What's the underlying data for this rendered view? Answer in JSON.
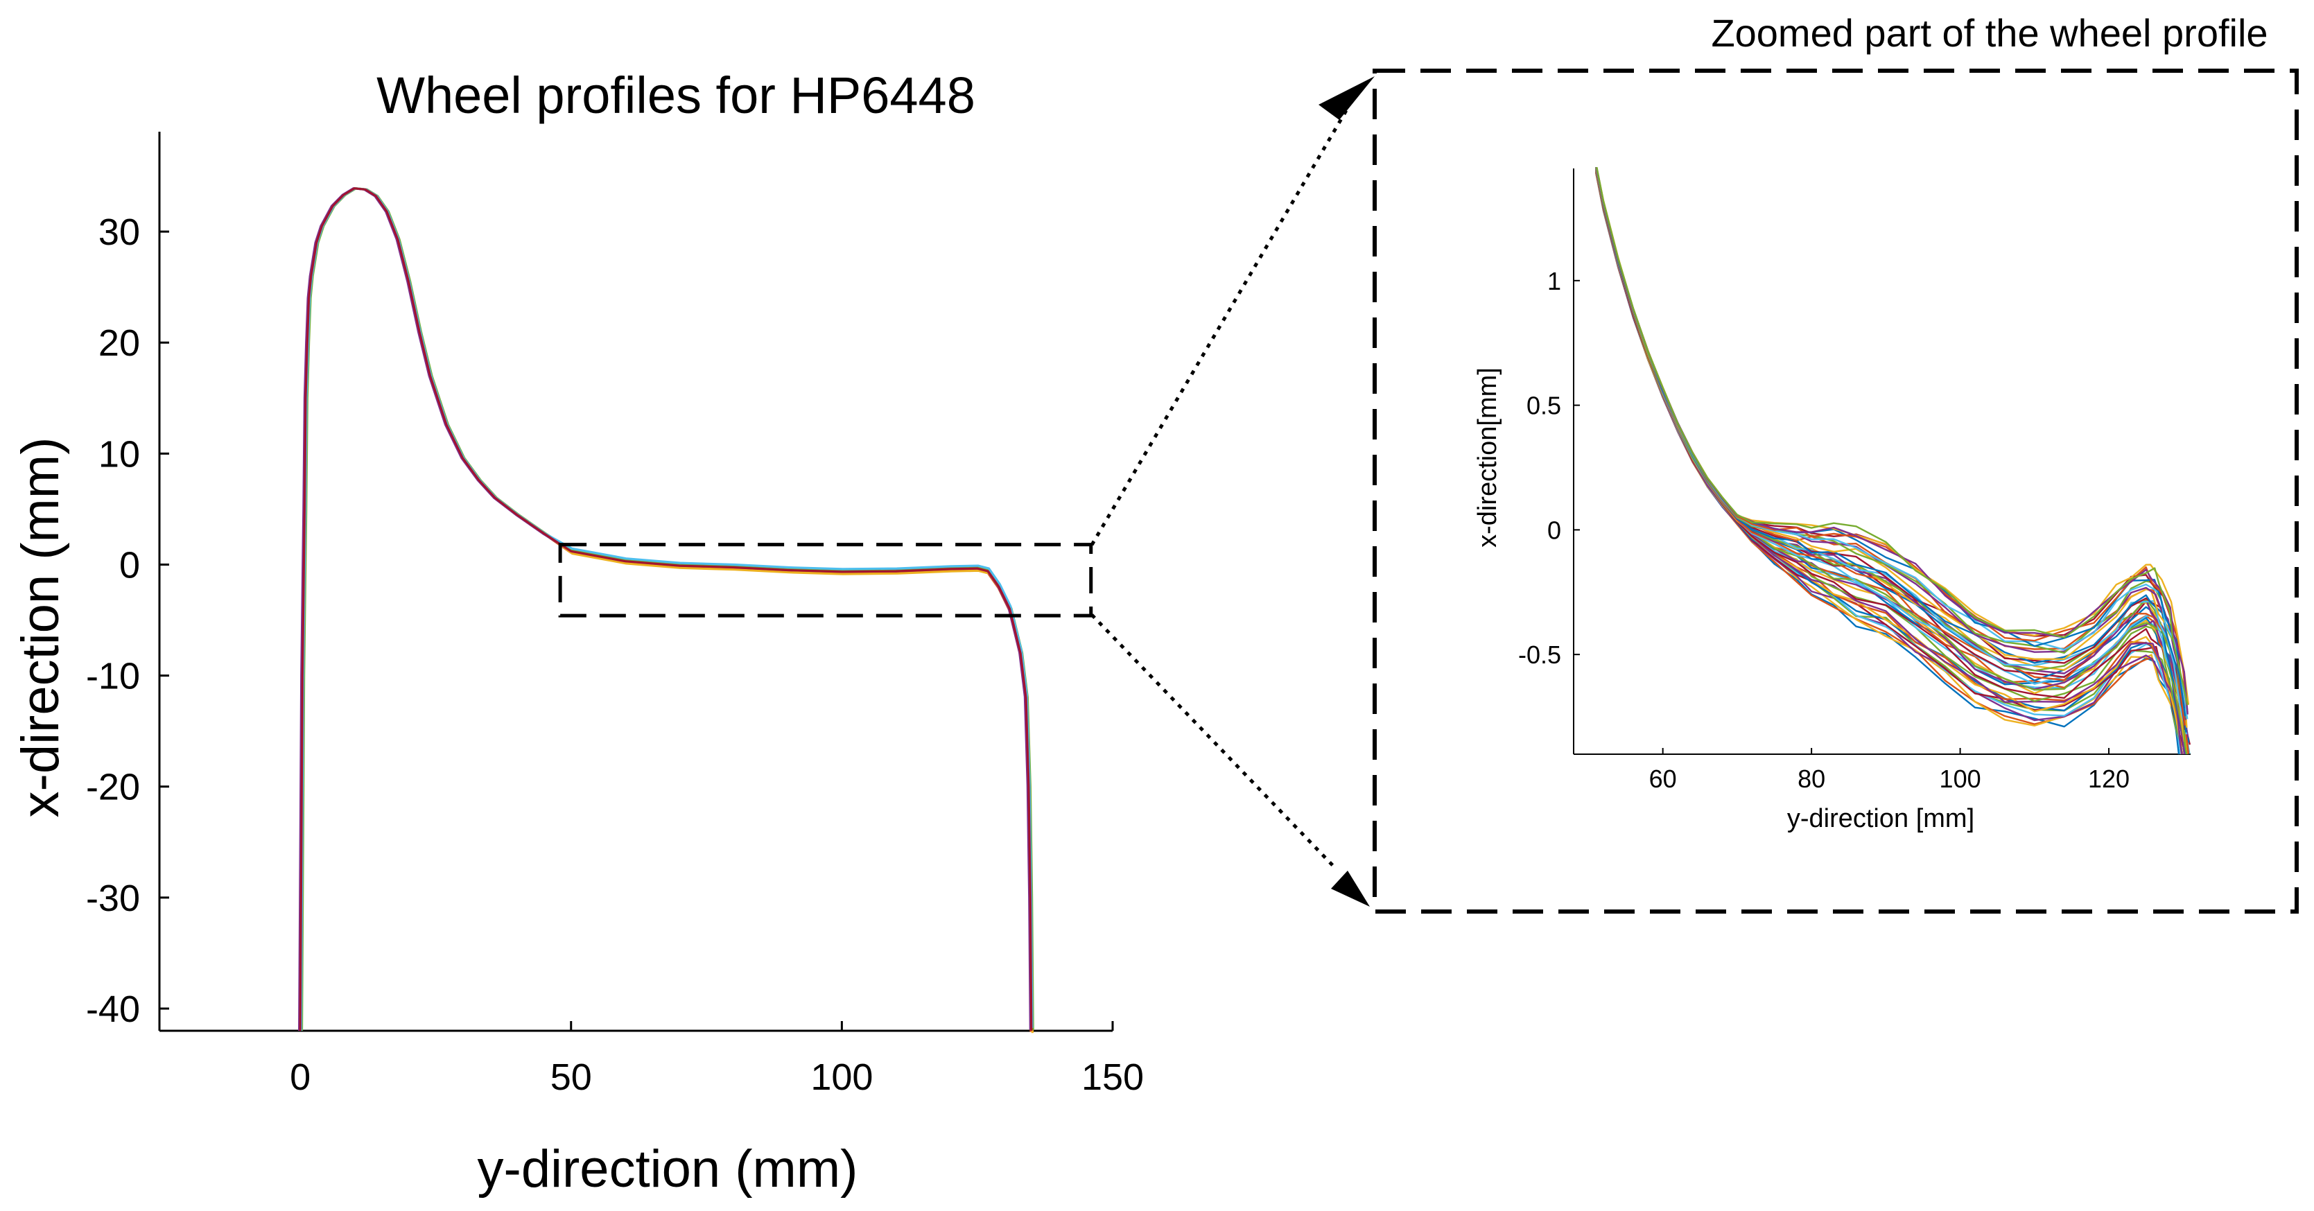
{
  "chart_data": [
    {
      "type": "line",
      "title": "Wheel profiles for HP6448",
      "xlabel": "y-direction (mm)",
      "ylabel": "x-direction (mm)",
      "xlim": [
        -26,
        150
      ],
      "ylim": [
        -42,
        39
      ],
      "xticks": [
        0,
        50,
        100,
        150
      ],
      "yticks": [
        30,
        20,
        10,
        0,
        -10,
        -20,
        -30,
        -40
      ],
      "grid": false,
      "legend": "none",
      "colors": [
        "#0072bd",
        "#d95319",
        "#edb120",
        "#7e2f8e",
        "#77ac30",
        "#4dbeee",
        "#a2142f"
      ],
      "profile": {
        "x": [
          0,
          0.4,
          0.8,
          1,
          1.3,
          1.6,
          2,
          3,
          4,
          6,
          8,
          10,
          12,
          14,
          16,
          18,
          20,
          22,
          24,
          27,
          30,
          33,
          36,
          40,
          45,
          50,
          60,
          70,
          80,
          90,
          100,
          110,
          120,
          125,
          127,
          129,
          131,
          132,
          133,
          133.5,
          134,
          134.5,
          134.8,
          135
        ],
        "y": [
          -42,
          -10,
          5,
          15,
          20,
          24,
          26,
          29,
          30.5,
          32.3,
          33.3,
          33.9,
          33.8,
          33.2,
          31.8,
          29.3,
          25.5,
          21,
          17,
          12.6,
          9.6,
          7.6,
          6,
          4.5,
          2.8,
          1.2,
          0.3,
          -0.1,
          -0.25,
          -0.5,
          -0.65,
          -0.6,
          -0.4,
          -0.35,
          -0.6,
          -2,
          -4,
          -6,
          -8,
          -10,
          -12,
          -20,
          -30,
          -42
        ]
      },
      "series": [
        {
          "values": {
            "x_offset": 0.1,
            "y_offset": 0.15
          }
        },
        {
          "values": {
            "x_offset": -0.1,
            "y_offset": -0.1
          }
        },
        {
          "values": {
            "x_offset": 0.2,
            "y_offset": -0.2
          }
        },
        {
          "values": {
            "x_offset": -0.2,
            "y_offset": 0.1
          }
        },
        {
          "values": {
            "x_offset": 0.3,
            "y_offset": 0.05
          }
        },
        {
          "values": {
            "x_offset": 0.15,
            "y_offset": 0.25
          }
        },
        {
          "values": {
            "x_offset": 0,
            "y_offset": 0
          }
        }
      ],
      "inset_region": {
        "x": [
          48,
          146
        ],
        "y": [
          -4.6,
          1.8
        ]
      }
    },
    {
      "type": "line",
      "title": "Zoomed part of the wheel profile",
      "xlabel": "y-direction [mm]",
      "ylabel": "x-direction[mm]",
      "xlim": [
        48,
        131
      ],
      "ylim": [
        -0.9,
        1.45
      ],
      "xticks": [
        60,
        80,
        100,
        120
      ],
      "yticks": [
        1,
        0.5,
        0,
        -0.5
      ],
      "ytick_labels": [
        "1",
        "0.5",
        "0",
        "-0.5"
      ],
      "grid": false,
      "legend": "none",
      "colors": [
        "#0072bd",
        "#d95319",
        "#edb120",
        "#7e2f8e",
        "#77ac30",
        "#4dbeee",
        "#a2142f"
      ],
      "base_curve": {
        "x": [
          51,
          52,
          54,
          56,
          58,
          60,
          62,
          64,
          66,
          68,
          70,
          72,
          75,
          78,
          80,
          83,
          86,
          90,
          94,
          98,
          102,
          106,
          110,
          114,
          118,
          121,
          123,
          125,
          126,
          127,
          128,
          129,
          129.8,
          130.5
        ],
        "y": [
          1.45,
          1.3,
          1.07,
          0.87,
          0.7,
          0.55,
          0.41,
          0.29,
          0.19,
          0.11,
          0.04,
          -0.01,
          -0.06,
          -0.1,
          -0.13,
          -0.16,
          -0.2,
          -0.25,
          -0.34,
          -0.43,
          -0.52,
          -0.58,
          -0.61,
          -0.6,
          -0.53,
          -0.44,
          -0.37,
          -0.34,
          -0.36,
          -0.42,
          -0.5,
          -0.62,
          -0.75,
          -0.9
        ]
      },
      "series_count": 40,
      "spread": {
        "low": -0.17,
        "high": 0.2
      }
    }
  ]
}
